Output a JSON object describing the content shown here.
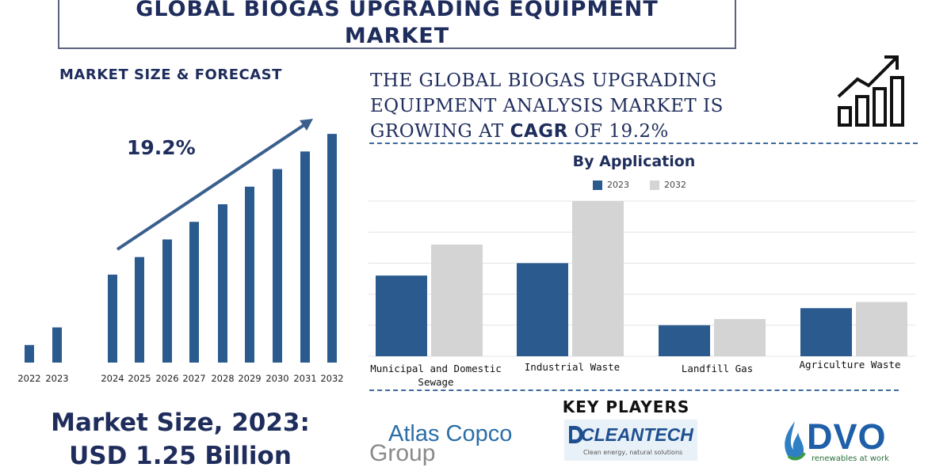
{
  "title": {
    "line1": "GLOBAL BIOGAS UPGRADING EQUIPMENT",
    "line2": "MARKET"
  },
  "market_heading": "MARKET SIZE & FORECAST",
  "cagr_label": "19.2%",
  "headline": {
    "line1": "THE GLOBAL BIOGAS UPGRADING",
    "line2": "EQUIPMENT ANALYSIS MARKET IS",
    "line3_pre": "GROWING AT ",
    "line3_bold": "CAGR",
    "line3_post": " OF 19.2%"
  },
  "market_size": {
    "line1": "Market Size, 2023:",
    "line2": "USD 1.25 Billion"
  },
  "key_players_heading": "KEY PLAYERS",
  "logos": {
    "atlas_line1": "Atlas Copco",
    "atlas_line2": "Group",
    "cleantech_name": "CLEANTECH",
    "cleantech_tag": "Clean energy, natural solutions",
    "dvo_name": "DVO",
    "dvo_tag": "renewables at work"
  },
  "colors": {
    "navy": "#1f2d5c",
    "bar_blue": "#2b5b8e",
    "bar_grey": "#d4d4d4"
  },
  "chart_data": [
    {
      "type": "bar",
      "title": "",
      "categories": [
        "2022",
        "2023",
        "2024",
        "2025",
        "2026",
        "2027",
        "2028",
        "2029",
        "2030",
        "2031",
        "2032"
      ],
      "values": [
        1.0,
        2.0,
        5.0,
        6.0,
        7.0,
        8.0,
        9.0,
        10.0,
        11.0,
        12.0,
        13.0
      ],
      "units": "relative",
      "annotation": "19.2%",
      "ylim": [
        0,
        13.5
      ]
    },
    {
      "type": "bar",
      "title": "By Application",
      "categories": [
        "Municipal and Domestic Sewage",
        "Industrial Waste",
        "Landfill Gas",
        "Agriculture Waste"
      ],
      "series": [
        {
          "name": "2023",
          "values": [
            0.52,
            0.6,
            0.2,
            0.31
          ]
        },
        {
          "name": "2032",
          "values": [
            0.72,
            1.0,
            0.24,
            0.35
          ]
        }
      ],
      "legend": "top",
      "grid": true,
      "ylim": [
        0,
        1.0
      ]
    }
  ]
}
